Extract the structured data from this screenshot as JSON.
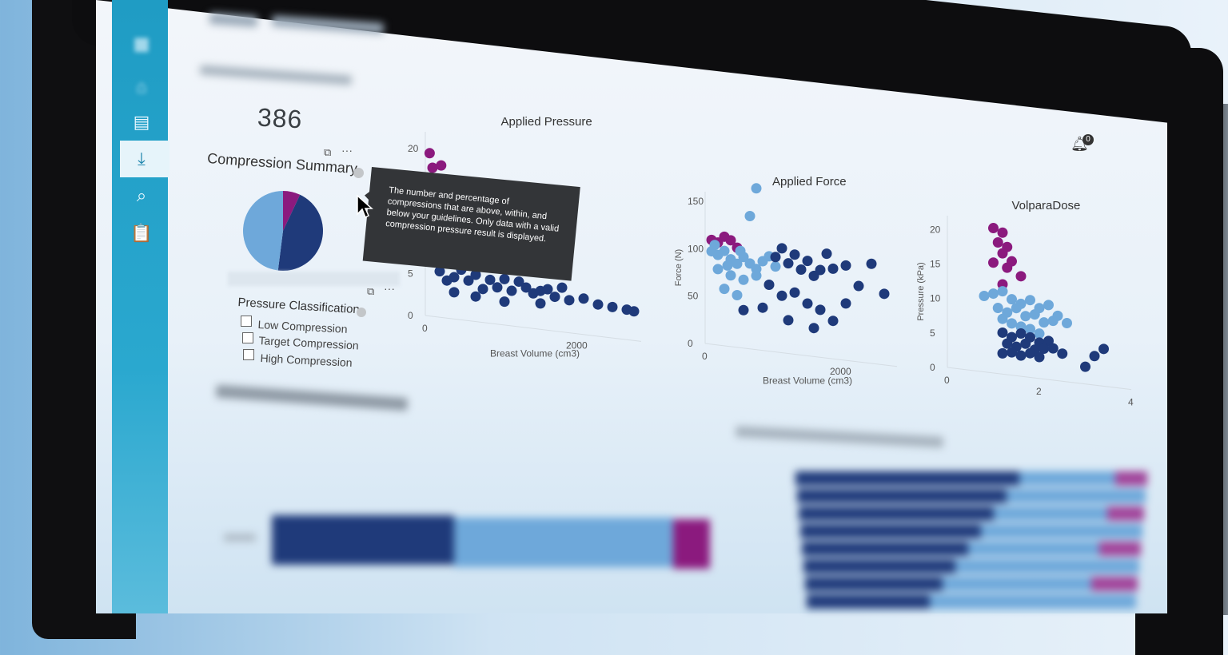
{
  "stats": {
    "total_value": "386"
  },
  "summary": {
    "title": "Compression Summary",
    "pie": [
      {
        "name": "low",
        "value": 0.07,
        "color": "#8b1a7e"
      },
      {
        "name": "target",
        "value": 0.45,
        "color": "#1f3a7a"
      },
      {
        "name": "high",
        "value": 0.48,
        "color": "#6ea8da"
      }
    ]
  },
  "tooltip": {
    "text": "The number and percentage of compressions that are above, within, and below your guidelines. Only data with a valid compression pressure result is displayed."
  },
  "pressure_classification": {
    "title": "Pressure Classification",
    "options": [
      "Low Compression",
      "Target Compression",
      "High Compression"
    ]
  },
  "notifications": {
    "count": "0"
  },
  "colors": {
    "high": "#8b1a7e",
    "target": "#6ea8da",
    "low": "#1f3a7a"
  },
  "chart_data": [
    {
      "type": "scatter",
      "title": "Applied Pressure",
      "xlabel": "Breast Volume (cm3)",
      "ylabel": "",
      "x_ticks": [
        "0",
        "2000"
      ],
      "y_ticks": [
        "0",
        "5",
        "20"
      ],
      "xlim": [
        0,
        3000
      ],
      "ylim": [
        0,
        22
      ],
      "series": [
        {
          "color": "#8b1a7e",
          "points": [
            [
              60,
              19.5
            ],
            [
              220,
              18.2
            ],
            [
              100,
              17.8
            ],
            [
              120,
              16
            ],
            [
              130,
              15.5
            ],
            [
              70,
              15
            ],
            [
              150,
              14.3
            ],
            [
              80,
              13.5
            ]
          ]
        },
        {
          "color": "#6ea8da",
          "points": [
            [
              100,
              8.5
            ],
            [
              200,
              9
            ],
            [
              300,
              8
            ],
            [
              400,
              8.6
            ],
            [
              500,
              8.8
            ],
            [
              600,
              8.1
            ],
            [
              700,
              8.3
            ],
            [
              800,
              7.9
            ],
            [
              900,
              8.4
            ],
            [
              1000,
              8.6
            ],
            [
              1200,
              8.2
            ],
            [
              150,
              7.6
            ],
            [
              350,
              7.4
            ],
            [
              650,
              7.2
            ],
            [
              850,
              7.1
            ]
          ]
        },
        {
          "color": "#1f3a7a",
          "points": [
            [
              100,
              6.5
            ],
            [
              200,
              5.5
            ],
            [
              300,
              4.5
            ],
            [
              400,
              5
            ],
            [
              500,
              6
            ],
            [
              600,
              4.8
            ],
            [
              700,
              5.6
            ],
            [
              800,
              4
            ],
            [
              900,
              5.2
            ],
            [
              1000,
              4.4
            ],
            [
              1100,
              5.5
            ],
            [
              1200,
              4.2
            ],
            [
              1300,
              5.4
            ],
            [
              1400,
              4.8
            ],
            [
              1500,
              4.2
            ],
            [
              1600,
              4.6
            ],
            [
              1700,
              4.9
            ],
            [
              1800,
              4.1
            ],
            [
              1900,
              5.3
            ],
            [
              2000,
              3.9
            ],
            [
              2200,
              4.3
            ],
            [
              2400,
              3.8
            ],
            [
              2600,
              3.7
            ],
            [
              2800,
              3.6
            ],
            [
              2900,
              3.5
            ],
            [
              400,
              3.2
            ],
            [
              700,
              3
            ],
            [
              1100,
              2.8
            ],
            [
              1600,
              3.1
            ]
          ]
        }
      ]
    },
    {
      "type": "scatter",
      "title": "Applied Force",
      "xlabel": "Breast Volume (cm3)",
      "ylabel": "Force (N)",
      "x_ticks": [
        "0",
        "2000"
      ],
      "y_ticks": [
        "0",
        "50",
        "100",
        "150"
      ],
      "xlim": [
        0,
        3000
      ],
      "ylim": [
        0,
        160
      ],
      "series": [
        {
          "color": "#8b1a7e",
          "points": [
            [
              100,
              110
            ],
            [
              300,
              115
            ],
            [
              500,
              105
            ],
            [
              200,
              108
            ],
            [
              400,
              112
            ]
          ]
        },
        {
          "color": "#6ea8da",
          "points": [
            [
              800,
              170
            ],
            [
              700,
              140
            ],
            [
              100,
              98
            ],
            [
              200,
              95
            ],
            [
              300,
              100
            ],
            [
              400,
              92
            ],
            [
              500,
              88
            ],
            [
              600,
              96
            ],
            [
              700,
              90
            ],
            [
              800,
              85
            ],
            [
              900,
              94
            ],
            [
              1000,
              100
            ],
            [
              1100,
              90
            ],
            [
              200,
              80
            ],
            [
              400,
              75
            ],
            [
              600,
              72
            ],
            [
              800,
              78
            ],
            [
              300,
              60
            ],
            [
              500,
              55
            ],
            [
              150,
              105
            ],
            [
              350,
              85
            ],
            [
              550,
              102
            ]
          ]
        },
        {
          "color": "#1f3a7a",
          "points": [
            [
              1100,
              100
            ],
            [
              1200,
              110
            ],
            [
              1300,
              95
            ],
            [
              1400,
              105
            ],
            [
              1500,
              90
            ],
            [
              1600,
              100
            ],
            [
              1700,
              85
            ],
            [
              1800,
              92
            ],
            [
              1900,
              110
            ],
            [
              2000,
              95
            ],
            [
              2200,
              100
            ],
            [
              2400,
              80
            ],
            [
              2600,
              105
            ],
            [
              2800,
              75
            ],
            [
              1000,
              70
            ],
            [
              1200,
              60
            ],
            [
              1400,
              65
            ],
            [
              1600,
              55
            ],
            [
              1800,
              50
            ],
            [
              2000,
              40
            ],
            [
              600,
              40
            ],
            [
              900,
              45
            ],
            [
              1300,
              35
            ],
            [
              1700,
              30
            ],
            [
              2200,
              60
            ]
          ]
        }
      ]
    },
    {
      "type": "scatter",
      "title": "VolparaDose",
      "xlabel": "",
      "ylabel": "Pressure (kPa)",
      "x_ticks": [
        "0",
        "2",
        "4"
      ],
      "y_ticks": [
        "0",
        "5",
        "10",
        "15",
        "20"
      ],
      "xlim": [
        0,
        4
      ],
      "ylim": [
        0,
        22
      ],
      "series": [
        {
          "color": "#8b1a7e",
          "points": [
            [
              1.0,
              21
            ],
            [
              1.2,
              20.5
            ],
            [
              1.1,
              19
            ],
            [
              1.3,
              18.5
            ],
            [
              1.2,
              17.5
            ],
            [
              1.4,
              16.5
            ],
            [
              1.0,
              16
            ],
            [
              1.3,
              15.5
            ],
            [
              1.6,
              14.5
            ],
            [
              1.2,
              13
            ]
          ]
        },
        {
          "color": "#6ea8da",
          "points": [
            [
              0.8,
              11
            ],
            [
              1.0,
              11.5
            ],
            [
              1.2,
              12
            ],
            [
              1.4,
              11
            ],
            [
              1.6,
              10.5
            ],
            [
              1.8,
              11.2
            ],
            [
              2.0,
              10.2
            ],
            [
              2.2,
              10.8
            ],
            [
              1.1,
              9.5
            ],
            [
              1.3,
              9
            ],
            [
              1.5,
              9.8
            ],
            [
              1.7,
              8.8
            ],
            [
              1.9,
              9.2
            ],
            [
              2.1,
              8.2
            ],
            [
              2.3,
              8.6
            ],
            [
              1.2,
              8
            ],
            [
              1.4,
              7.5
            ],
            [
              1.6,
              7.2
            ],
            [
              1.8,
              7
            ],
            [
              2.0,
              6.5
            ],
            [
              2.4,
              9.4
            ],
            [
              2.6,
              8.5
            ]
          ]
        },
        {
          "color": "#1f3a7a",
          "points": [
            [
              1.2,
              6
            ],
            [
              1.4,
              5.5
            ],
            [
              1.6,
              6.2
            ],
            [
              1.8,
              5.8
            ],
            [
              2.0,
              5.2
            ],
            [
              2.2,
              5.6
            ],
            [
              1.3,
              4.5
            ],
            [
              1.5,
              4.2
            ],
            [
              1.7,
              4.8
            ],
            [
              1.9,
              4.1
            ],
            [
              2.1,
              4.4
            ],
            [
              2.3,
              4.6
            ],
            [
              1.4,
              3.3
            ],
            [
              1.6,
              3
            ],
            [
              1.8,
              3.5
            ],
            [
              2.0,
              3.1
            ],
            [
              2.5,
              4
            ],
            [
              3.2,
              4.2
            ],
            [
              3.4,
              5.4
            ],
            [
              3.0,
              2.5
            ],
            [
              1.2,
              3
            ]
          ]
        }
      ]
    }
  ]
}
